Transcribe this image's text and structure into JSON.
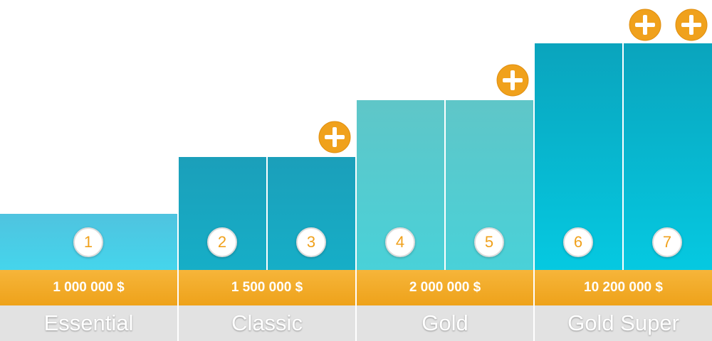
{
  "colors": {
    "tier_essential": "#45d5ec",
    "tier_classic": "#16aec7",
    "tier_gold": "#49d1d8",
    "tier_gold_super": "#05c9e1",
    "accent_orange": "#f0a11c",
    "name_band": "#e2e2e2"
  },
  "steps": [
    {
      "number": "1",
      "plus_count": 0
    },
    {
      "number": "2",
      "plus_count": 0
    },
    {
      "number": "3",
      "plus_count": 1
    },
    {
      "number": "4",
      "plus_count": 0
    },
    {
      "number": "5",
      "plus_count": 1
    },
    {
      "number": "6",
      "plus_count": 0
    },
    {
      "number": "7",
      "plus_count": 2
    }
  ],
  "tiers": [
    {
      "name": "Essential",
      "price": "1 000 000 $"
    },
    {
      "name": "Classic",
      "price": "1 500 000 $"
    },
    {
      "name": "Gold",
      "price": "2 000 000 $"
    },
    {
      "name": "Gold Super",
      "price": "10 200 000 $"
    }
  ],
  "plus_icon": "plus-circle-icon"
}
